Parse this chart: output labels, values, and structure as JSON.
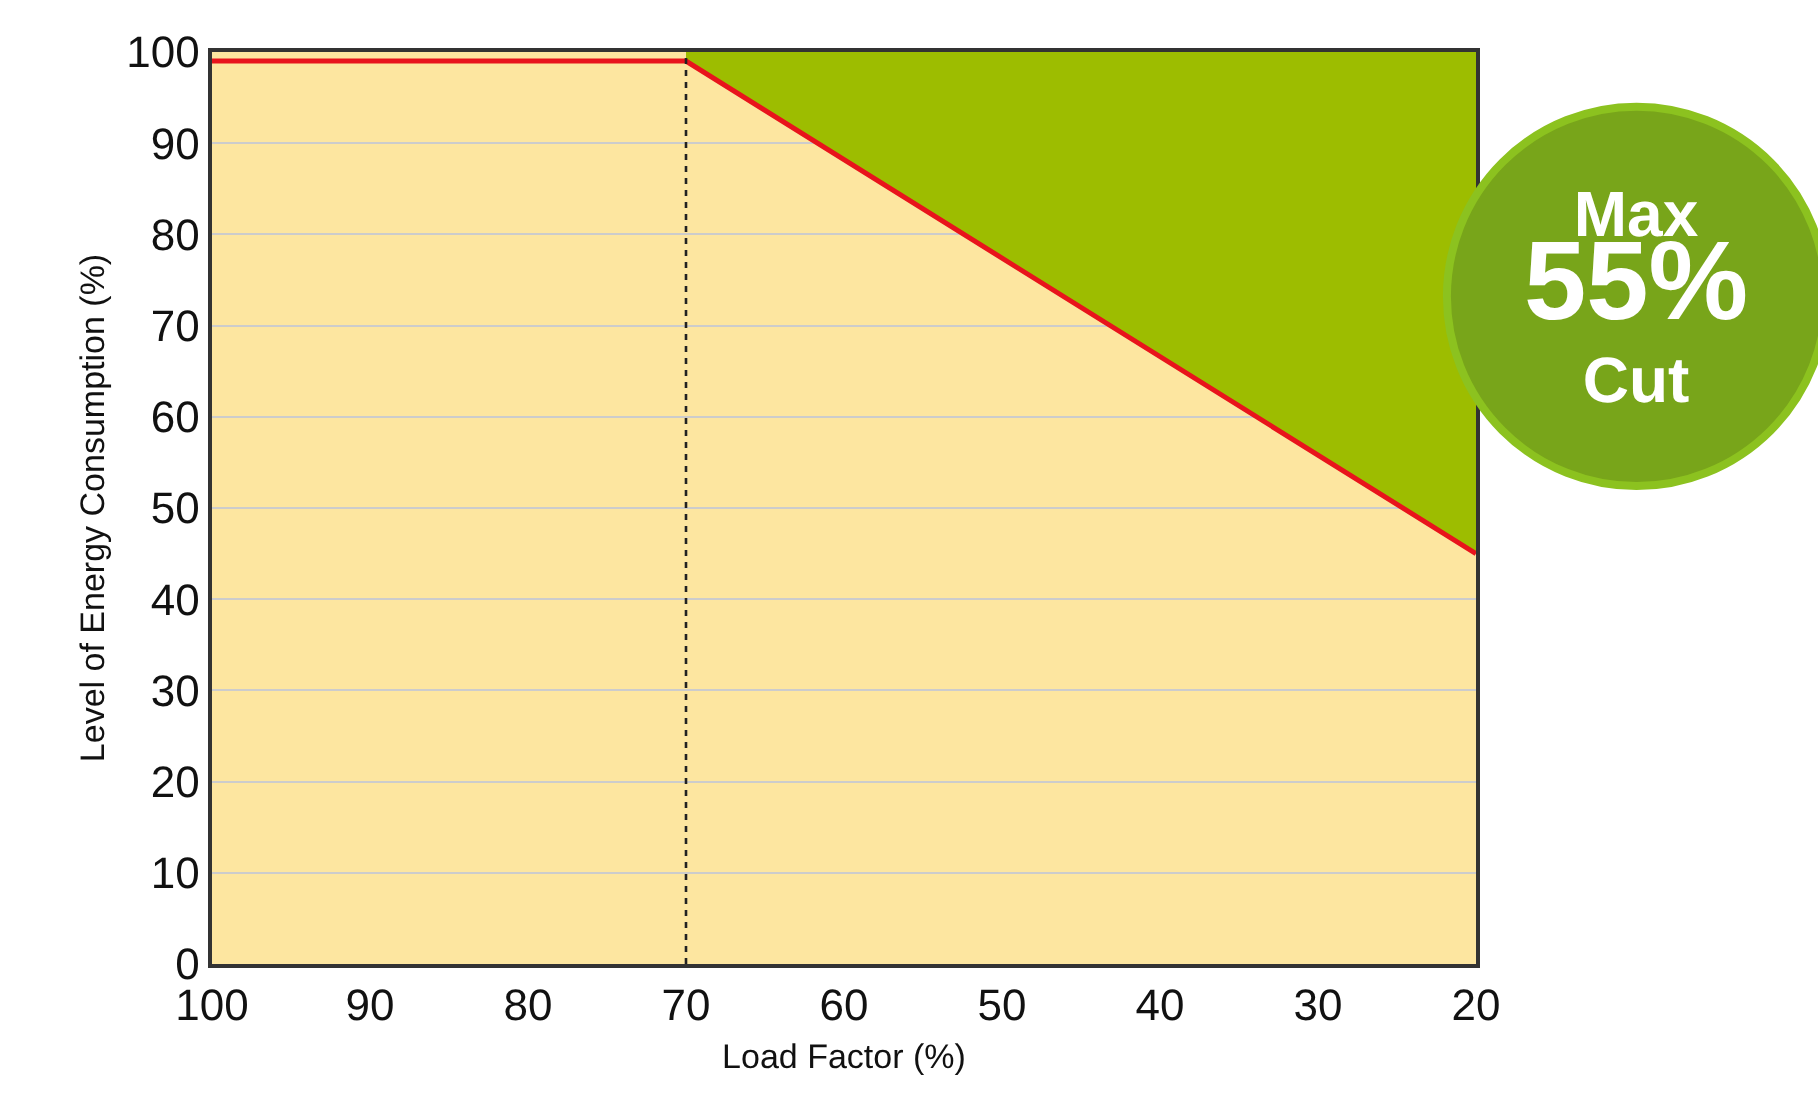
{
  "chart_data": {
    "type": "line",
    "xlabel": "Load Factor (%)",
    "ylabel": "Level of Energy Consumption (%)",
    "series": [
      {
        "color": "#e8141c",
        "x": [
          100,
          70,
          20
        ],
        "values": [
          99,
          99,
          45
        ]
      },
      {
        "type": "area",
        "color": "#9dbd00",
        "x": [
          70,
          20
        ],
        "values": [
          100,
          100
        ]
      }
    ],
    "xlim": [
      100,
      20
    ],
    "xticks": [
      100,
      90,
      80,
      70,
      60,
      50,
      40,
      30,
      20
    ],
    "ylim": [
      0,
      100
    ],
    "yticks": [
      0,
      10,
      20,
      30,
      40,
      50,
      60,
      70,
      80,
      90,
      100
    ],
    "grid": "y",
    "marker": "none",
    "line_style": "solid",
    "ref_lines": [
      {
        "axis": "x",
        "value": 70,
        "color": "#222222",
        "line_style": "dotted"
      }
    ],
    "annotations": [
      "Max\n55%\nCut"
    ]
  }
}
